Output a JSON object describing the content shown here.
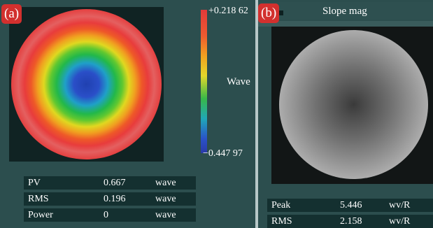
{
  "panel_a": {
    "label": "(a)",
    "colorbar": {
      "max_label": "+0.218 62",
      "min_label": "−0.447 97",
      "unit_label": "Wave"
    },
    "stats": [
      {
        "name": "PV",
        "value": "0.667",
        "unit": "wave"
      },
      {
        "name": "RMS",
        "value": "0.196",
        "unit": "wave"
      },
      {
        "name": "Power",
        "value": "0",
        "unit": "wave"
      }
    ]
  },
  "panel_b": {
    "label": "(b)",
    "title": "Slope mag",
    "stats": [
      {
        "name": "Peak",
        "value": "5.446",
        "unit": "wv/R"
      },
      {
        "name": "RMS",
        "value": "2.158",
        "unit": "wv/R"
      }
    ]
  },
  "colors": {
    "background": "#2c4e4e",
    "label_badge": "#d2302e",
    "stats_row": "#143030"
  }
}
